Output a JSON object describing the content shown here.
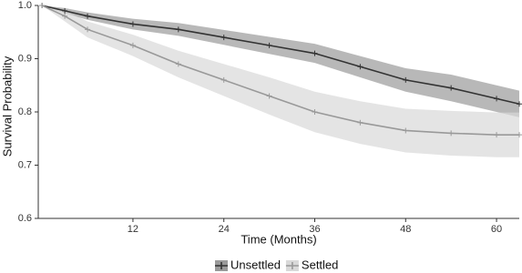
{
  "chart_data": {
    "type": "survival",
    "x_label": "Time (Months)",
    "y_label": "Survival Probability",
    "xlim": [
      -0.5,
      63
    ],
    "ylim": [
      0.6,
      1.0
    ],
    "xticks": [
      12,
      24,
      36,
      48,
      60
    ],
    "yticks": [
      0.6,
      0.7,
      0.8,
      0.9,
      {
        "value": 1,
        "label": "1.0"
      }
    ],
    "x": [
      0,
      3,
      6,
      12,
      18,
      24,
      30,
      36,
      42,
      48,
      54,
      60,
      63
    ],
    "series": [
      {
        "name": "Unsettled",
        "color": "#333333",
        "band_color": "#9a9a9a",
        "values": [
          1.0,
          0.99,
          0.98,
          0.965,
          0.955,
          0.94,
          0.925,
          0.91,
          0.885,
          0.86,
          0.845,
          0.825,
          0.815
        ],
        "lower": [
          1.0,
          0.985,
          0.973,
          0.955,
          0.943,
          0.926,
          0.909,
          0.892,
          0.865,
          0.838,
          0.82,
          0.8,
          0.79
        ],
        "upper": [
          1.0,
          0.995,
          0.987,
          0.975,
          0.967,
          0.954,
          0.941,
          0.928,
          0.905,
          0.882,
          0.87,
          0.85,
          0.84
        ]
      },
      {
        "name": "Settled",
        "color": "#999999",
        "band_color": "#d9d9d9",
        "values": [
          1.0,
          0.98,
          0.955,
          0.925,
          0.89,
          0.86,
          0.83,
          0.8,
          0.78,
          0.765,
          0.76,
          0.757,
          0.757
        ],
        "lower": [
          1.0,
          0.97,
          0.94,
          0.905,
          0.865,
          0.83,
          0.795,
          0.762,
          0.74,
          0.724,
          0.718,
          0.715,
          0.715
        ],
        "upper": [
          1.0,
          0.99,
          0.97,
          0.945,
          0.915,
          0.89,
          0.865,
          0.838,
          0.82,
          0.806,
          0.802,
          0.799,
          0.799
        ]
      }
    ]
  }
}
